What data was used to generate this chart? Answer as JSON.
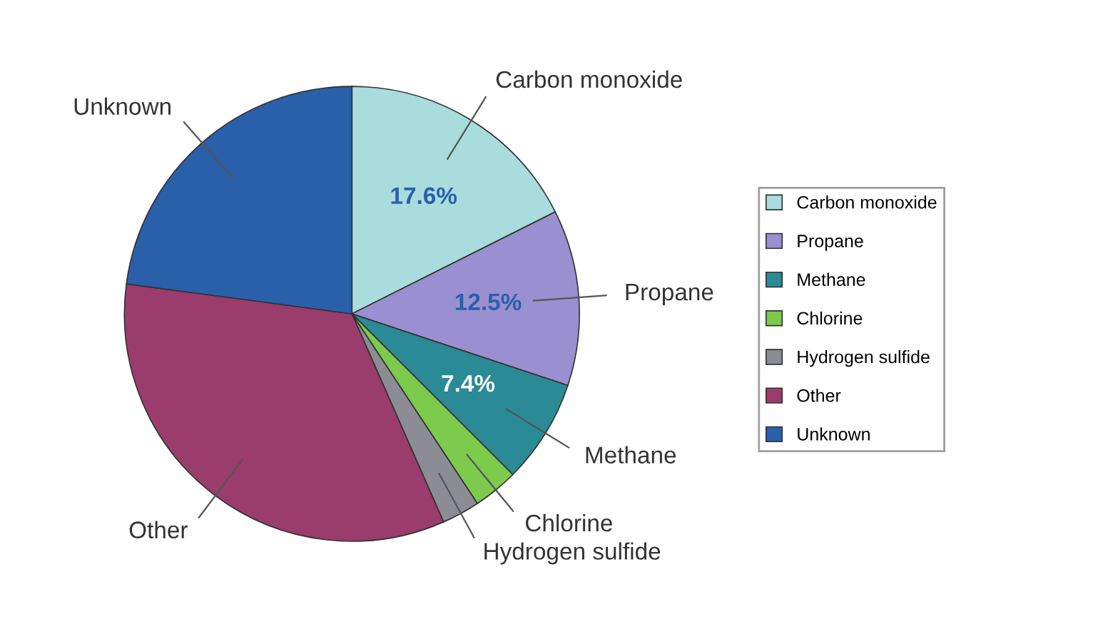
{
  "chart_data": {
    "type": "pie",
    "categories": [
      "Carbon monoxide",
      "Propane",
      "Methane",
      "Chlorine",
      "Hydrogen sulfide",
      "Other",
      "Unknown"
    ],
    "values": [
      17.6,
      12.5,
      7.4,
      3.2,
      2.7,
      33.7,
      22.9
    ],
    "colors": [
      "#a9dcdc",
      "#9a8fd0",
      "#2a8a96",
      "#7ccb4c",
      "#8c8c94",
      "#9a3c6c",
      "#2a5faa"
    ],
    "value_labels": [
      "17.6%",
      "12.5%",
      "7.4%",
      null,
      null,
      null,
      null
    ],
    "legend": "right"
  }
}
